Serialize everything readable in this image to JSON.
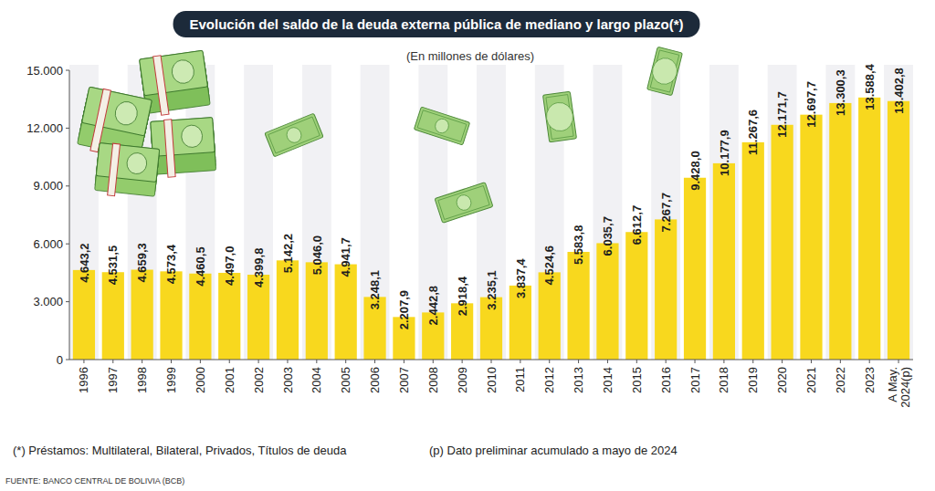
{
  "chart_data": {
    "type": "bar",
    "title": "Evolución del saldo de la deuda externa pública de mediano y largo plazo(*)",
    "subtitle": "(En millones de dólares)",
    "categories": [
      "1996",
      "1997",
      "1998",
      "1999",
      "2000",
      "2001",
      "2002",
      "2003",
      "2004",
      "2005",
      "2006",
      "2007",
      "2008",
      "2009",
      "2010",
      "2011",
      "2012",
      "2013",
      "2014",
      "2015",
      "2016",
      "2017",
      "2018",
      "2019",
      "2020",
      "2021",
      "2022",
      "2023",
      "A May. 2024(p)"
    ],
    "values": [
      4643.2,
      4531.5,
      4659.3,
      4573.4,
      4460.5,
      4497.0,
      4399.8,
      5142.2,
      5046.0,
      4941.7,
      3248.1,
      2207.9,
      2442.8,
      2918.4,
      3235.1,
      3837.4,
      4524.6,
      5583.8,
      6035.7,
      6612.7,
      7267.7,
      9428.0,
      10177.9,
      11267.6,
      12171.7,
      12697.7,
      13300.3,
      13588.4,
      13402.8
    ],
    "value_labels": [
      "4.643,2",
      "4.531,5",
      "4.659,3",
      "4.573,4",
      "4.460,5",
      "4.497,0",
      "4.399,8",
      "5.142,2",
      "5.046,0",
      "4.941,7",
      "3.248,1",
      "2.207,9",
      "2.442,8",
      "2.918,4",
      "3.235,1",
      "3.837,4",
      "4.524,6",
      "5.583,8",
      "6.035,7",
      "6.612,7",
      "7.267,7",
      "9.428,0",
      "10.177,9",
      "11.267,6",
      "12.171,7",
      "12.697,7",
      "13.300,3",
      "13.588,4",
      "13.402,8"
    ],
    "data_labels": true,
    "color": "#f8d81e",
    "ylim": [
      0,
      15000
    ],
    "yticks": [
      0,
      {
        "value": 3000,
        "label": "3.000"
      },
      {
        "value": 6000,
        "label": "6.000"
      },
      {
        "value": 9000,
        "label": "9.000"
      },
      {
        "value": 12000,
        "label": "12.000"
      },
      {
        "value": 15000,
        "label": "15.000"
      }
    ],
    "grid": false,
    "annotations": [
      "(*) Préstamos: Multilateral, Bilateral, Privados, Títulos de deuda",
      "(p) Dato preliminar acumulado a mayo de 2024"
    ],
    "source": "FUENTE: BANCO CENTRAL DE BOLIVIA (BCB)"
  }
}
